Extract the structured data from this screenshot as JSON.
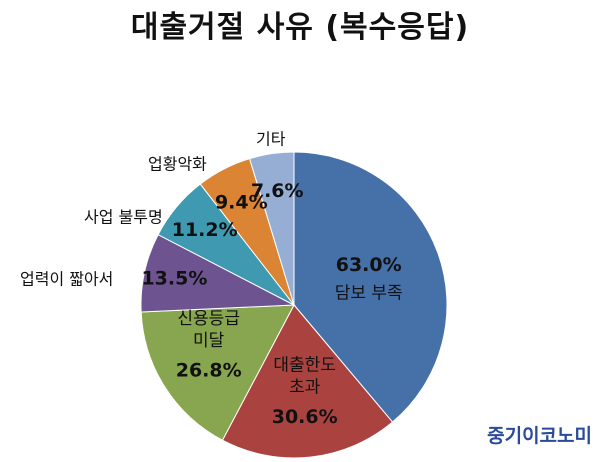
{
  "chart_data": {
    "type": "pie",
    "title": "대출거절 사유 (복수응답)",
    "slices": [
      {
        "label": "담보 부족",
        "value": 63.0,
        "display": "63.0%",
        "color": "#4570a8"
      },
      {
        "label": "대출한도 초과",
        "value": 30.6,
        "display": "30.6%",
        "color": "#aa4340"
      },
      {
        "label": "신용등급 미달",
        "value": 26.8,
        "display": "26.8%",
        "color": "#87a64f"
      },
      {
        "label": "업력이 짧아서",
        "value": 13.5,
        "display": "13.5%",
        "color": "#6d5490"
      },
      {
        "label": "사업 불투명",
        "value": 11.2,
        "display": "11.2%",
        "color": "#3e99b1"
      },
      {
        "label": "업황악화",
        "value": 9.4,
        "display": "9.4%",
        "color": "#da8434"
      },
      {
        "label": "기타",
        "value": 7.6,
        "display": "7.6%",
        "color": "#97aed4"
      }
    ]
  },
  "watermark": "중기이코노미"
}
